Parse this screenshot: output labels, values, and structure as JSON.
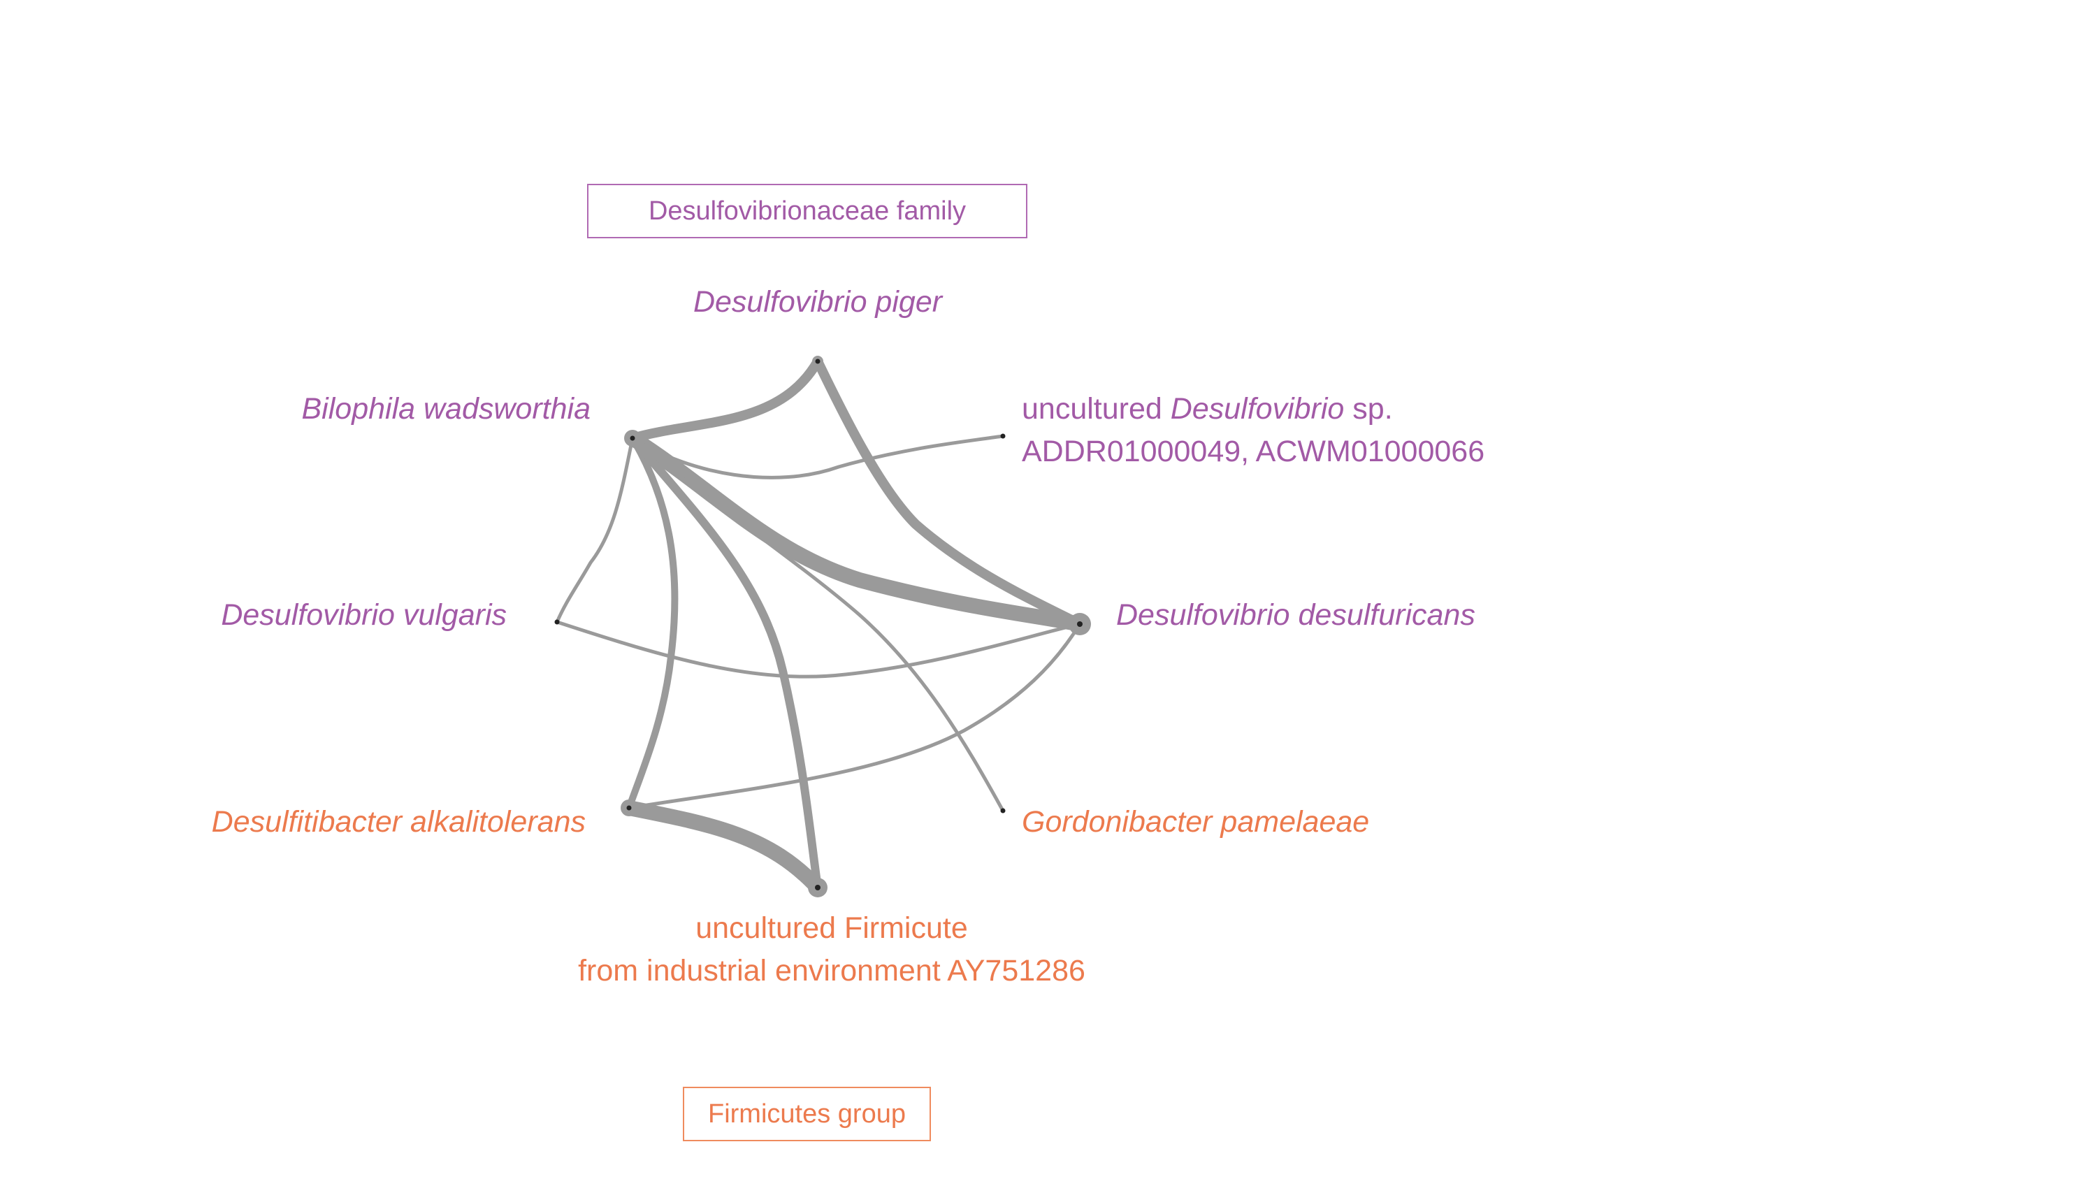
{
  "groups": {
    "desulfo": {
      "label": "Desulfovibrionaceae family",
      "color": "#a25aa6"
    },
    "firmicutes": {
      "label": "Firmicutes group",
      "color": "#ec7a4d"
    }
  },
  "nodes": {
    "piger": {
      "name": "Desulfovibrio piger",
      "group": "desulfo"
    },
    "bilophila": {
      "name": "Bilophila wadsworthia",
      "group": "desulfo"
    },
    "uncultured_desulfo": {
      "prefix": "uncultured ",
      "genus": "Desulfovibrio",
      "suffix": " sp.",
      "accessions": "ADDR01000049, ACWM01000066",
      "group": "desulfo"
    },
    "vulgaris": {
      "name": "Desulfovibrio vulgaris",
      "group": "desulfo"
    },
    "desulfuricans": {
      "name": "Desulfovibrio desulfuricans",
      "group": "desulfo"
    },
    "desulfitibacter": {
      "name": "Desulfitibacter alkalitolerans",
      "group": "firmicutes"
    },
    "gordonibacter": {
      "name": "Gordonibacter pamelaeae",
      "group": "firmicutes"
    },
    "uncultured_firmicute": {
      "line1": "uncultured Firmicute",
      "line2": "from industrial environment AY751286",
      "group": "firmicutes"
    }
  },
  "edges": [
    {
      "source": "bilophila",
      "target": "desulfuricans",
      "weight": 5
    },
    {
      "source": "bilophila",
      "target": "piger",
      "weight": 3
    },
    {
      "source": "piger",
      "target": "desulfuricans",
      "weight": 3
    },
    {
      "source": "desulfitibacter",
      "target": "uncultured_firmicute",
      "weight": 4
    },
    {
      "source": "bilophila",
      "target": "desulfitibacter",
      "weight": 2
    },
    {
      "source": "bilophila",
      "target": "uncultured_firmicute",
      "weight": 2
    },
    {
      "source": "bilophila",
      "target": "uncultured_desulfo",
      "weight": 1
    },
    {
      "source": "bilophila",
      "target": "vulgaris",
      "weight": 1
    },
    {
      "source": "bilophila",
      "target": "gordonibacter",
      "weight": 1
    },
    {
      "source": "vulgaris",
      "target": "desulfuricans",
      "weight": 1
    },
    {
      "source": "desulfitibacter",
      "target": "desulfuricans",
      "weight": 1
    }
  ],
  "style": {
    "edge_color": "#9a9a9a"
  }
}
